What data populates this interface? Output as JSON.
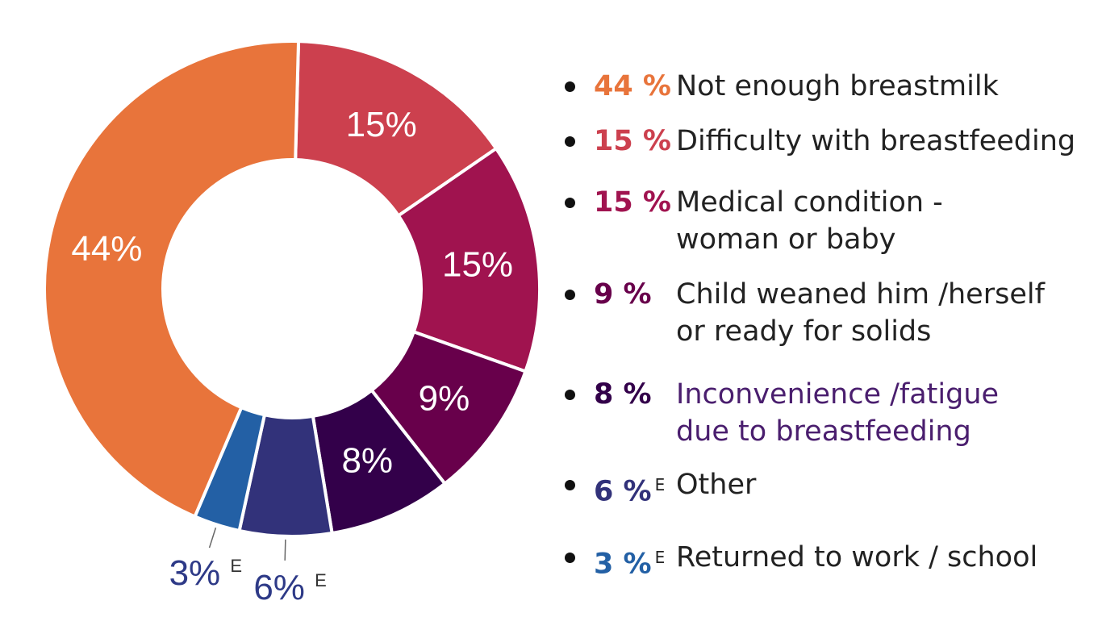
{
  "chart_data": {
    "type": "pie",
    "categories": [
      "Not enough breastmilk",
      "Difficulty with breastfeeding",
      "Medical condition - woman or baby",
      "Child weaned him /herself or ready for solids",
      "Inconvenience /fatigue due to breastfeeding",
      "Other",
      "Returned to work / school"
    ],
    "values": [
      44,
      15,
      15,
      9,
      8,
      6,
      3
    ],
    "slice_labels": [
      "44%",
      "15%",
      "15%",
      "9%",
      "8%",
      "6%",
      "3%"
    ],
    "slice_label_superscripts": [
      "",
      "",
      "",
      "",
      "",
      "E",
      "E"
    ],
    "colors": [
      "#e8743b",
      "#cc404e",
      "#a0134f",
      "#68004b",
      "#33004a",
      "#32327a",
      "#2360a5"
    ],
    "legend_position": "right"
  },
  "legend": {
    "items": [
      {
        "pct": "44 %",
        "sup": "",
        "lines": [
          "Not enough breastmilk"
        ],
        "color": "#e8743b",
        "text_color": "#222222"
      },
      {
        "pct": "15 %",
        "sup": "",
        "lines": [
          "Difficulty with breastfeeding"
        ],
        "color": "#cc404e",
        "text_color": "#222222"
      },
      {
        "pct": "15 %",
        "sup": "",
        "lines": [
          "Medical condition -",
          "woman or baby"
        ],
        "color": "#a0134f",
        "text_color": "#222222"
      },
      {
        "pct": "9 %",
        "sup": "",
        "lines": [
          "Child weaned him /herself",
          "or ready for solids"
        ],
        "color": "#68004b",
        "text_color": "#222222"
      },
      {
        "pct": "8 %",
        "sup": "",
        "lines": [
          "Inconvenience /fatigue",
          "due to breastfeeding"
        ],
        "color": "#33004a",
        "text_color": "#4a1e6e"
      },
      {
        "pct": "6 %",
        "sup": "E",
        "lines": [
          "Other"
        ],
        "color": "#32327a",
        "text_color": "#222222"
      },
      {
        "pct": "3 %",
        "sup": "E",
        "lines": [
          "Returned to work / school"
        ],
        "color": "#2360a5",
        "text_color": "#222222"
      }
    ]
  }
}
